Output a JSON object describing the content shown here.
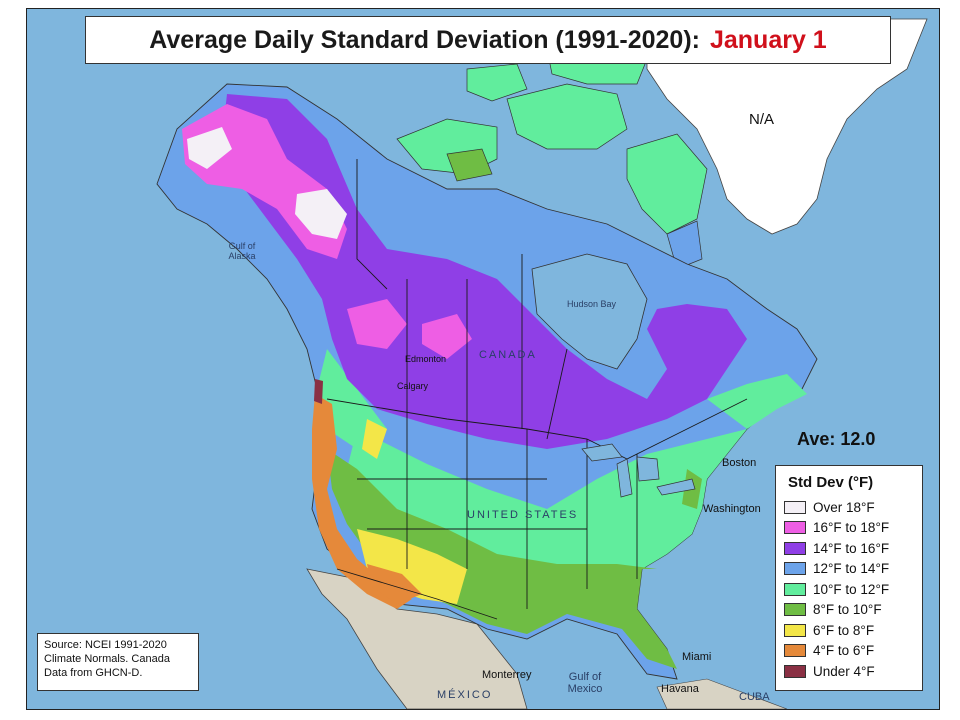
{
  "title": {
    "main": "Average Daily Standard Deviation (1991-2020):",
    "date": "January 1"
  },
  "no_data_label": "N/A",
  "average_label": "Ave: 12.0",
  "legend": {
    "title": "Std Dev (°F)",
    "items": [
      {
        "label": "Over 18°F",
        "color": "#f4f0f6"
      },
      {
        "label": "16°F to 18°F",
        "color": "#ee5ee4"
      },
      {
        "label": "14°F to 16°F",
        "color": "#8f3fe6"
      },
      {
        "label": "12°F to 14°F",
        "color": "#6ca3ea"
      },
      {
        "label": "10°F to 12°F",
        "color": "#61ed9d"
      },
      {
        "label": "8°F to 10°F",
        "color": "#6fbd44"
      },
      {
        "label": "6°F to 8°F",
        "color": "#f3e648"
      },
      {
        "label": "4°F to 6°F",
        "color": "#e5893a"
      },
      {
        "label": "Under 4°F",
        "color": "#8a3044"
      }
    ]
  },
  "source_note": "Source: NCEI 1991-2020 Climate Normals. Canada Data from GHCN-D.",
  "map_labels": {
    "canada": "CANADA",
    "united_states": "UNITED STATES",
    "mexico": "MÉXICO",
    "gulf_of_mexico": "Gulf of Mexico",
    "hudson_bay": "Hudson Bay",
    "cuba": "CUBA",
    "havana": "Havana",
    "miami": "Miami",
    "monterrey": "Monterrey",
    "boston": "Boston",
    "washington": "Washington",
    "edmonton": "Edmonton",
    "calgary": "Calgary",
    "gulf_of_alaska": "Gulf of Alaska"
  },
  "colors": {
    "ocean": "#7fb6dd",
    "land_no_data": "#d8d3c4",
    "greenland": "#ffffff",
    "borders": "#1a1a1a",
    "title_accent": "#d0101b"
  }
}
